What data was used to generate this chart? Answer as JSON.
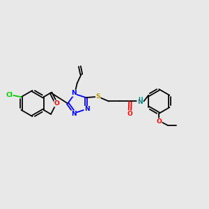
{
  "bg_color": "#e8e8e8",
  "bond_color": "#000000",
  "atom_colors": {
    "N": "#0000ff",
    "O": "#ff0000",
    "S": "#b8a000",
    "Cl": "#00cc00",
    "NH": "#008888",
    "C": "#000000"
  },
  "figsize": [
    3.0,
    3.0
  ],
  "dpi": 100
}
